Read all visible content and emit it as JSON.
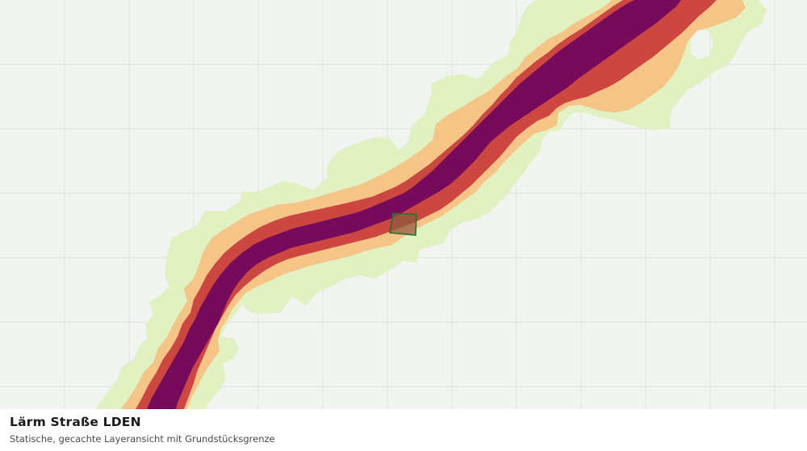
{
  "layer": {
    "title": "Lärm Straße LDEN",
    "subtitle": "Statische, gecachte Layeransicht mit Grundstücksgrenze"
  },
  "colors": {
    "background": "#f2f4f2",
    "grid_line": "#dcdfdc",
    "noise_band_outer": "#e2f1c2",
    "noise_band_mid": "#f4c586",
    "noise_band_high": "#cc4642",
    "noise_band_highest": "#760a5b",
    "parcel_fill": "#8d5a3f",
    "parcel_stroke": "#2e6b2a"
  },
  "legend_icons": [
    "noise-band-shapes",
    "parcel-boundary"
  ]
}
